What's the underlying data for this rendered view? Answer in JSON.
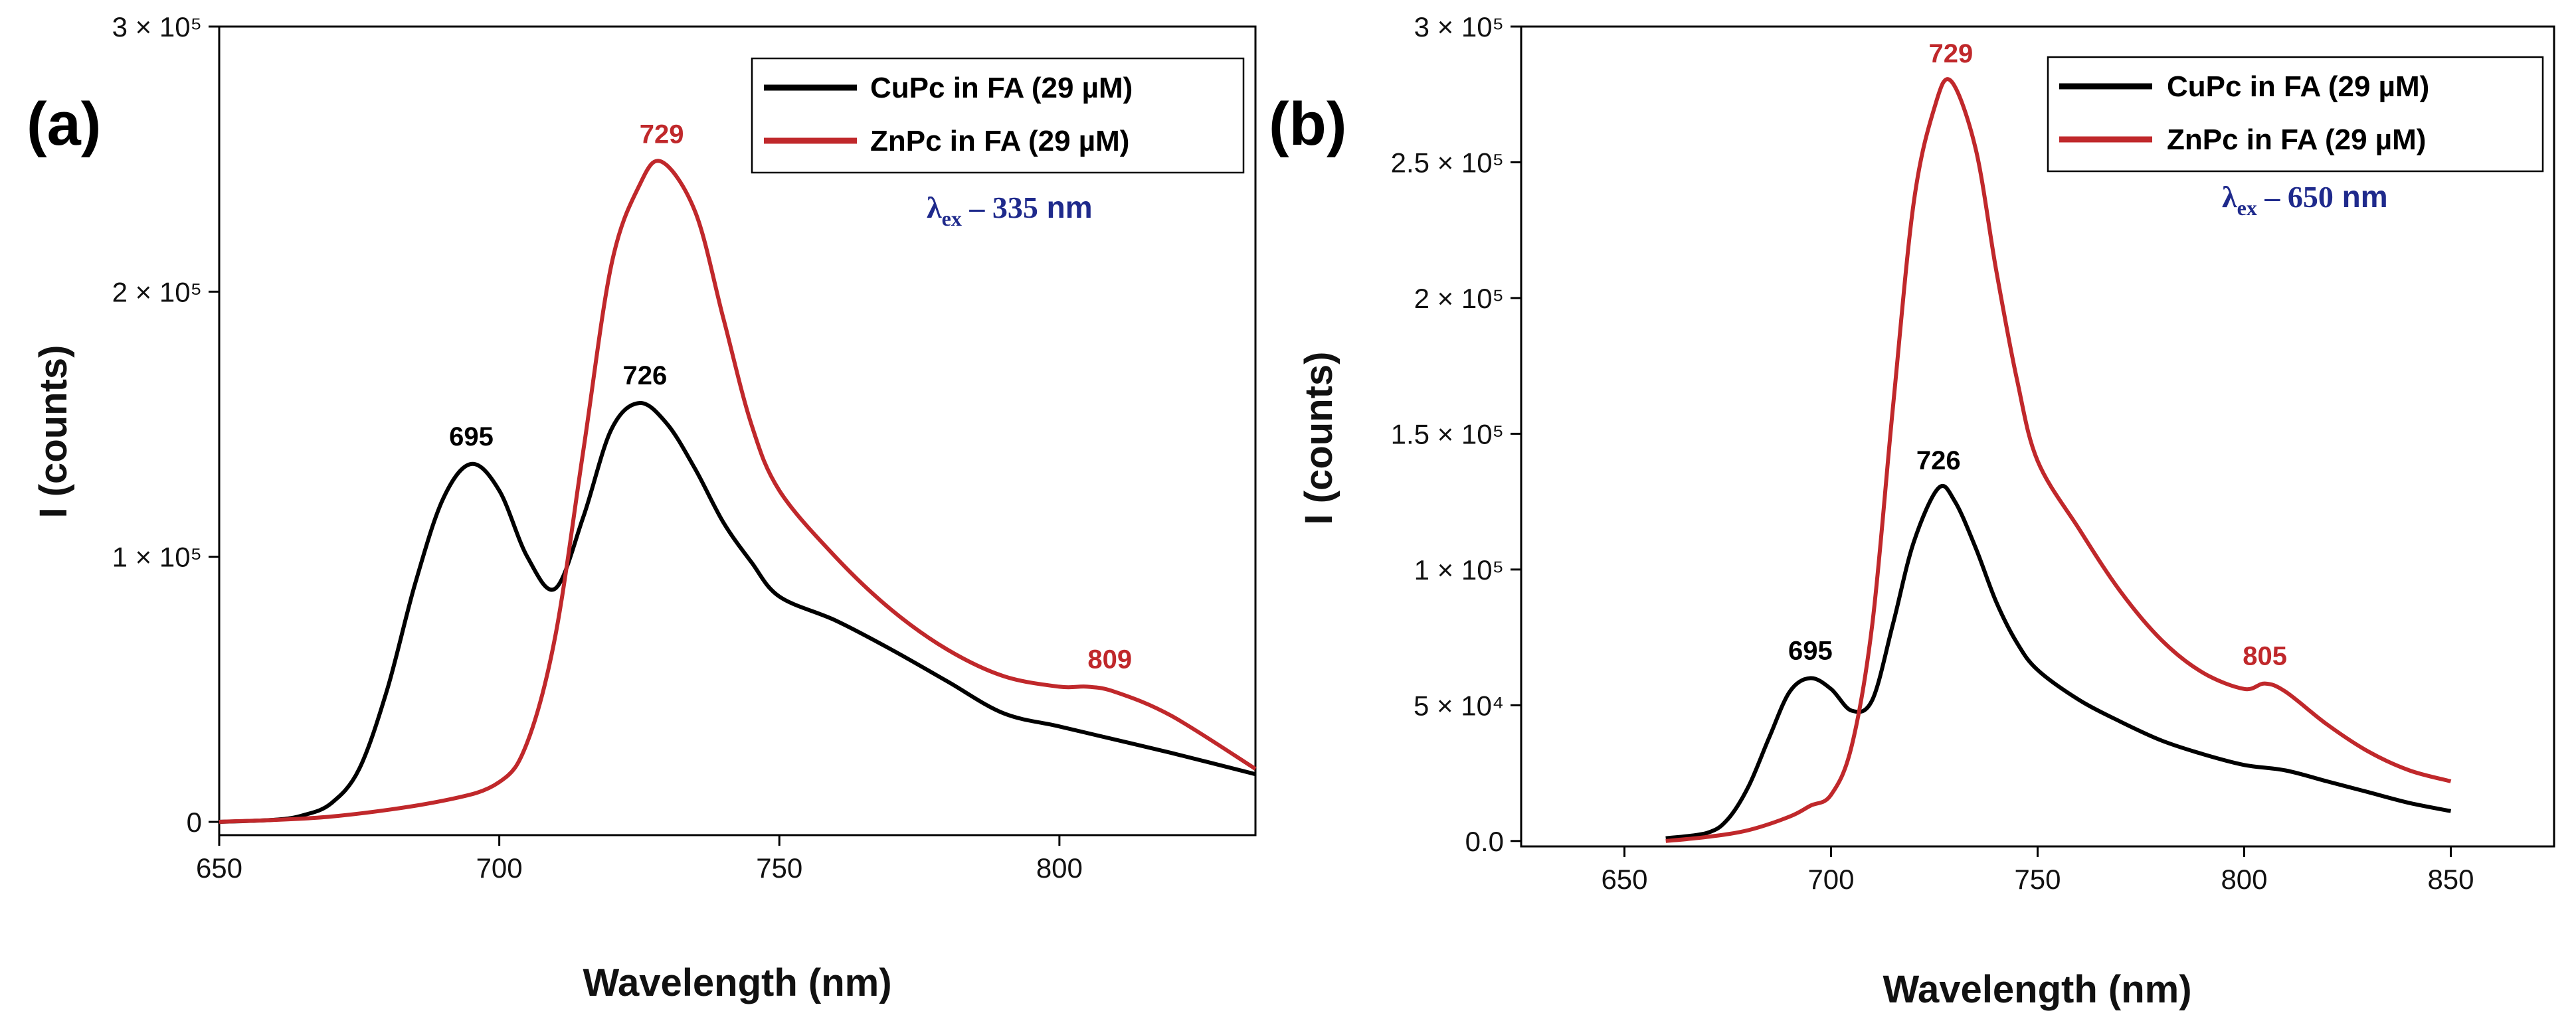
{
  "chart_data": [
    {
      "panel": "(a)",
      "type": "line",
      "xlabel": "Wavelength (nm)",
      "ylabel": "I (counts)",
      "xlim": [
        650,
        835
      ],
      "ylim": [
        -5000,
        300000
      ],
      "xticks": [
        650,
        700,
        750,
        800
      ],
      "xtick_labels": [
        "650",
        "700",
        "750",
        "800"
      ],
      "yticks": [
        0,
        100000,
        200000,
        300000
      ],
      "ytick_labels": [
        "0",
        "1 × 10⁵",
        "2 × 10⁵",
        "3 × 10⁵"
      ],
      "legend_position": "top-right",
      "annotation": {
        "symbol": "λ",
        "sub": "ex",
        "value": " – 335",
        "unit": " nm"
      },
      "series": [
        {
          "name": "CuPc in FA (29 µM)",
          "color": "#000000",
          "x": [
            650,
            660,
            665,
            670,
            675,
            680,
            685,
            690,
            695,
            700,
            705,
            710,
            715,
            720,
            725,
            730,
            735,
            740,
            745,
            750,
            760,
            770,
            780,
            790,
            800,
            810,
            820,
            835
          ],
          "y": [
            0,
            800,
            2500,
            7000,
            20000,
            50000,
            90000,
            122000,
            135000,
            125000,
            100000,
            88000,
            115000,
            148000,
            158000,
            150000,
            133000,
            113000,
            98000,
            85000,
            76000,
            65000,
            53000,
            41000,
            36000,
            31000,
            26000,
            18000
          ]
        },
        {
          "name": "ZnPc in FA (29 µM)",
          "color": "#c0282b",
          "x": [
            650,
            670,
            690,
            700,
            705,
            710,
            715,
            720,
            725,
            729,
            735,
            740,
            745,
            750,
            760,
            770,
            780,
            790,
            800,
            805,
            810,
            820,
            835
          ],
          "y": [
            0,
            2000,
            8000,
            15000,
            30000,
            70000,
            140000,
            210000,
            240000,
            249000,
            230000,
            190000,
            150000,
            125000,
            100000,
            80000,
            65000,
            55000,
            51000,
            51000,
            49000,
            40000,
            20000
          ]
        }
      ],
      "peak_labels": [
        {
          "text": "695",
          "series": "CuPc in FA (29 µM)",
          "x": 695,
          "y": 135000
        },
        {
          "text": "726",
          "series": "CuPc in FA (29 µM)",
          "x": 726,
          "y": 158000
        },
        {
          "text": "729",
          "series": "ZnPc in FA (29 µM)",
          "x": 729,
          "y": 249000
        },
        {
          "text": "809",
          "series": "ZnPc in FA (29 µM)",
          "x": 809,
          "y": 51000
        }
      ]
    },
    {
      "panel": "(b)",
      "type": "line",
      "xlabel": "Wavelength (nm)",
      "ylabel": "I (counts)",
      "xlim": [
        625,
        875
      ],
      "ylim": [
        -2000,
        300000
      ],
      "xticks": [
        650,
        700,
        750,
        800,
        850
      ],
      "xtick_labels": [
        "650",
        "700",
        "750",
        "800",
        "850"
      ],
      "yticks": [
        0,
        50000,
        100000,
        150000,
        200000,
        250000,
        300000
      ],
      "ytick_labels": [
        "0.0",
        "5 × 10⁴",
        "1 × 10⁵",
        "1.5 × 10⁵",
        "2 × 10⁵",
        "2.5 × 10⁵",
        "3 × 10⁵"
      ],
      "legend_position": "top-right",
      "annotation": {
        "symbol": "λ",
        "sub": "ex",
        "value": " – 650",
        "unit": " nm"
      },
      "series": [
        {
          "name": "CuPc in FA (29 µM)",
          "color": "#000000",
          "x": [
            660,
            670,
            675,
            680,
            685,
            690,
            695,
            700,
            705,
            710,
            715,
            720,
            726,
            730,
            735,
            740,
            745,
            750,
            760,
            770,
            780,
            790,
            800,
            810,
            820,
            830,
            840,
            850
          ],
          "y": [
            1000,
            3000,
            8000,
            20000,
            38000,
            55000,
            60000,
            56000,
            48000,
            52000,
            80000,
            110000,
            130000,
            125000,
            108000,
            88000,
            73000,
            63000,
            52000,
            44000,
            37000,
            32000,
            28000,
            26000,
            22000,
            18000,
            14000,
            11000
          ]
        },
        {
          "name": "ZnPc in FA (29 µM)",
          "color": "#c0282b",
          "x": [
            660,
            670,
            680,
            690,
            695,
            700,
            705,
            710,
            715,
            720,
            725,
            729,
            735,
            740,
            745,
            750,
            760,
            770,
            780,
            790,
            800,
            805,
            810,
            820,
            830,
            840,
            850
          ],
          "y": [
            0,
            1500,
            4000,
            9000,
            13000,
            17000,
            35000,
            80000,
            160000,
            235000,
            270000,
            280000,
            255000,
            210000,
            170000,
            140000,
            115000,
            92000,
            74000,
            62000,
            56000,
            58000,
            55000,
            43000,
            33000,
            26000,
            22000
          ]
        }
      ],
      "peak_labels": [
        {
          "text": "695",
          "series": "CuPc in FA (29 µM)",
          "x": 695,
          "y": 60000
        },
        {
          "text": "726",
          "series": "CuPc in FA (29 µM)",
          "x": 726,
          "y": 130000
        },
        {
          "text": "729",
          "series": "ZnPc in FA (29 µM)",
          "x": 729,
          "y": 280000
        },
        {
          "text": "805",
          "series": "ZnPc in FA (29 µM)",
          "x": 805,
          "y": 58000
        }
      ]
    }
  ]
}
